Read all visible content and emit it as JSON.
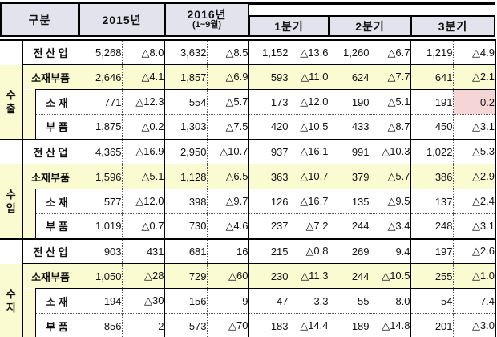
{
  "header": {
    "gubun": "구분",
    "y2015": "2015년",
    "y2016_title": "2016년",
    "y2016_sub": "(1~9월)",
    "quarters": [
      "1분기",
      "2분기",
      "3분기"
    ]
  },
  "colors": {
    "header_bg": "#e3e3ee",
    "highlight_row_bg": "#fbfbd2",
    "highlight_cell_bg": "#f5d5d5",
    "border": "#000000"
  },
  "groups": [
    {
      "label": "수출",
      "rows": [
        {
          "label": "전 산 업",
          "cells": [
            "5,268",
            "△8.0",
            "3,632",
            "△8.5",
            "1,152",
            "△13.6",
            "1,260",
            "△6.7",
            "1,219",
            "△4.9"
          ]
        },
        {
          "label": "소재부품",
          "cells": [
            "2,646",
            "△4.1",
            "1,857",
            "△6.9",
            "593",
            "△11.0",
            "624",
            "△7.7",
            "641",
            "△2.1"
          ]
        },
        {
          "label": "소 재",
          "cells": [
            "771",
            "△12.3",
            "554",
            "△5.7",
            "173",
            "△12.0",
            "190",
            "△5.1",
            "191",
            "0.2"
          ]
        },
        {
          "label": "부 품",
          "cells": [
            "1,875",
            "△0.2",
            "1,303",
            "△7.5",
            "420",
            "△10.5",
            "433",
            "△8.7",
            "450",
            "△3.1"
          ]
        }
      ]
    },
    {
      "label": "수입",
      "rows": [
        {
          "label": "전 산 업",
          "cells": [
            "4,365",
            "△16.9",
            "2,950",
            "△10.7",
            "937",
            "△16.1",
            "991",
            "△10.3",
            "1,022",
            "△5.3"
          ]
        },
        {
          "label": "소재부품",
          "cells": [
            "1,596",
            "△5.1",
            "1,128",
            "△6.5",
            "363",
            "△10.7",
            "379",
            "△5.7",
            "386",
            "△2.9"
          ]
        },
        {
          "label": "소 재",
          "cells": [
            "577",
            "△12.0",
            "398",
            "△9.7",
            "126",
            "△16.7",
            "135",
            "△9.5",
            "137",
            "△2.4"
          ]
        },
        {
          "label": "부 품",
          "cells": [
            "1,019",
            "△0.7",
            "730",
            "△4.6",
            "237",
            "△7.2",
            "244",
            "△3.4",
            "248",
            "△3.1"
          ]
        }
      ]
    },
    {
      "label": "수지",
      "rows": [
        {
          "label": "전 산 업",
          "cells": [
            "903",
            "431",
            "681",
            "16",
            "215",
            "△0.8",
            "269",
            "9.4",
            "197",
            "△2.6"
          ]
        },
        {
          "label": "소재부품",
          "cells": [
            "1,050",
            "△28",
            "729",
            "△60",
            "230",
            "△11.3",
            "244",
            "△10.5",
            "255",
            "△1.0"
          ]
        },
        {
          "label": "소 재",
          "cells": [
            "194",
            "△30",
            "156",
            "9",
            "47",
            "3.3",
            "55",
            "8.0",
            "54",
            "7.4"
          ]
        },
        {
          "label": "부 품",
          "cells": [
            "856",
            "2",
            "573",
            "△70",
            "183",
            "△14.4",
            "189",
            "△14.8",
            "201",
            "△3.0"
          ]
        }
      ]
    }
  ],
  "highlight_cell": {
    "group": 0,
    "row": 2,
    "cell": 9
  }
}
